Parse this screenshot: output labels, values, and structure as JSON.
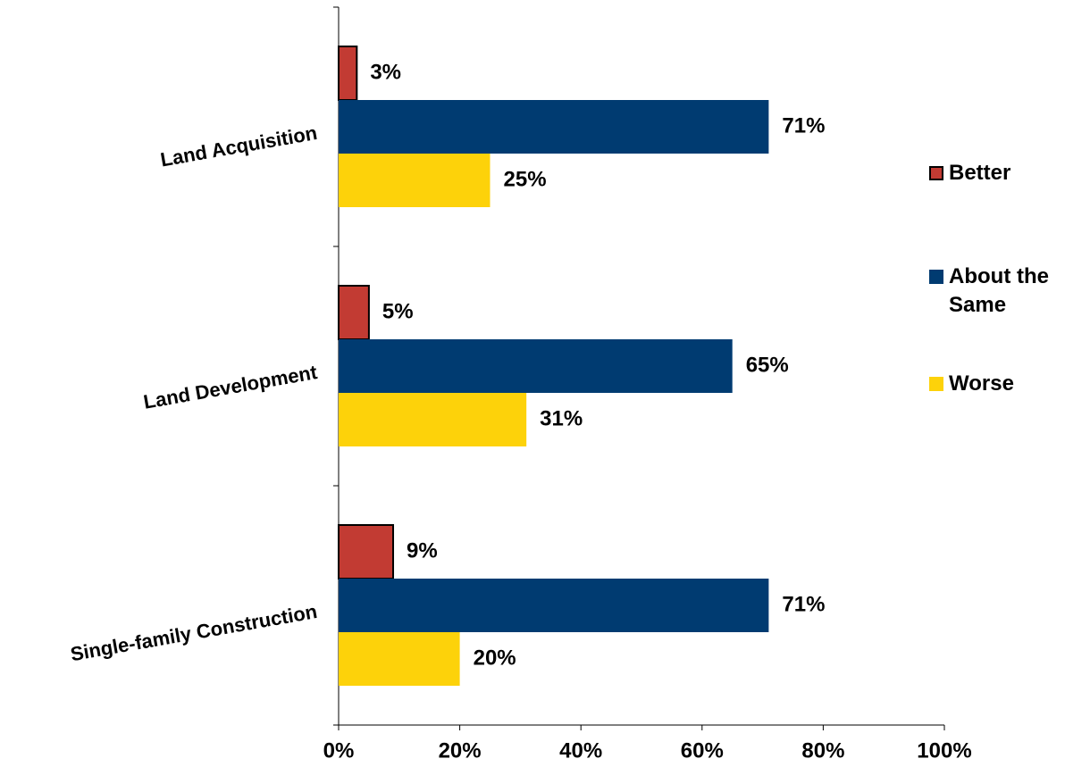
{
  "chart_data": {
    "type": "hbar",
    "categories": [
      "Land Acquisition",
      "Land Development",
      "Single-family Construction"
    ],
    "series": [
      {
        "name": "Better",
        "color": "#c23b33",
        "values": [
          3,
          5,
          9
        ],
        "value_labels": [
          "3%",
          "5%",
          "9%"
        ]
      },
      {
        "name": "About the Same",
        "color": "#003b71",
        "values": [
          71,
          65,
          71
        ],
        "value_labels": [
          "71%",
          "65%",
          "71%"
        ]
      },
      {
        "name": "Worse",
        "color": "#fdd20a",
        "values": [
          25,
          31,
          20
        ],
        "value_labels": [
          "25%",
          "31%",
          "20%"
        ]
      }
    ],
    "xlim": [
      0,
      100
    ],
    "xticks": [
      {
        "value": 0,
        "label": "0%"
      },
      {
        "value": 20,
        "label": "20%"
      },
      {
        "value": 40,
        "label": "40%"
      },
      {
        "value": 60,
        "label": "60%"
      },
      {
        "value": 80,
        "label": "80%"
      },
      {
        "value": 100,
        "label": "100%"
      }
    ],
    "legend": "right"
  }
}
